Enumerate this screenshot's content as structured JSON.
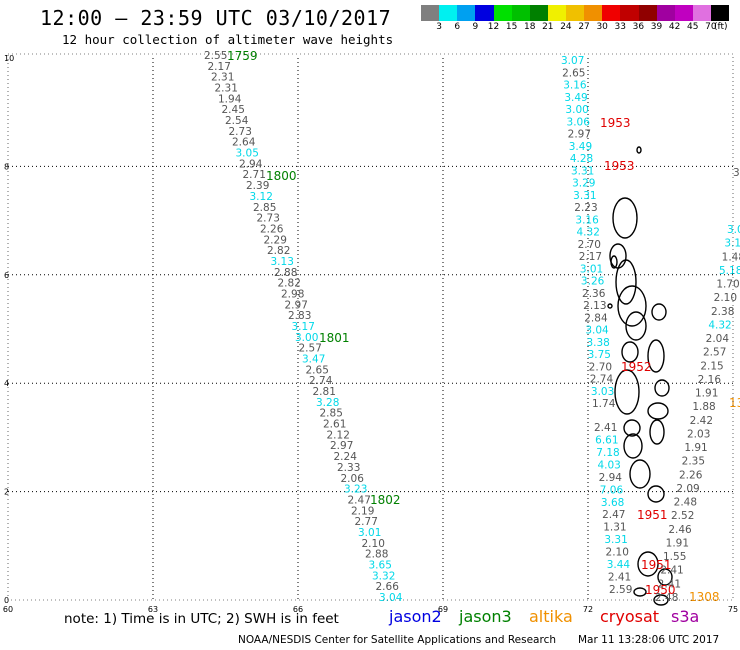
{
  "title": "12:00 – 23:59 UTC 03/10/2017",
  "subtitle": "12 hour collection of altimeter wave heights",
  "colorbar": {
    "colors": [
      "#7f7f7f",
      "#00f0f0",
      "#00a0f0",
      "#0000e0",
      "#00e000",
      "#00c000",
      "#008000",
      "#f0f000",
      "#f0c000",
      "#f09000",
      "#f00000",
      "#c00000",
      "#900000",
      "#a000a0",
      "#c000c0",
      "#e070e0",
      "#000000"
    ],
    "labels": [
      "3",
      "6",
      "9",
      "12",
      "15",
      "18",
      "21",
      "24",
      "27",
      "30",
      "33",
      "36",
      "39",
      "42",
      "45",
      "70"
    ],
    "unit": "(ft)"
  },
  "axes": {
    "y_ticks": [
      "0",
      "2",
      "4",
      "6",
      "8",
      "10"
    ],
    "x_ticks": [
      "60",
      "63",
      "66",
      "69",
      "72",
      "75"
    ]
  },
  "chart_data": {
    "type": "map",
    "lon_range": [
      60,
      75
    ],
    "lat_range": [
      0,
      10
    ],
    "tracks": [
      {
        "satellite": "jason3",
        "time_label": "1759",
        "values": [
          "2.55",
          "2.17",
          "2.31",
          "2.31",
          "1.94",
          "2.45",
          "2.54",
          "2.73",
          "2.64",
          "3.05",
          "2.94",
          "2.71",
          "2.39",
          "3.12",
          "2.85",
          "2.73",
          "2.26",
          "2.29",
          "2.82",
          "3.13",
          "2.88",
          "2.82",
          "2.98",
          "2.97",
          "2.83",
          "3.17",
          "3.00",
          "2.57",
          "3.47",
          "2.65",
          "2.74",
          "2.81",
          "3.28",
          "2.85",
          "2.61",
          "2.12",
          "2.97",
          "2.24",
          "2.33",
          "2.06",
          "3.23",
          "2.47",
          "2.19",
          "2.77",
          "3.01",
          "2.10",
          "2.88",
          "3.65",
          "3.32",
          "2.66",
          "3.04"
        ],
        "time_labels_extra": [
          "1800",
          "1801",
          "1802"
        ]
      },
      {
        "satellite": "cryosat",
        "time_label": "1953",
        "values": [
          "3.07",
          "2.65",
          "3.16",
          "3.49",
          "3.00",
          "3.06",
          "2.97",
          "3.49",
          "4.28",
          "3.31",
          "3.29",
          "3.31",
          "2.23",
          "3.16",
          "4.32",
          "2.70",
          "2.17",
          "3.01",
          "3.26",
          "2.36",
          "2.13",
          "2.84",
          "3.04",
          "3.38",
          "3.75",
          "2.70",
          "2.74",
          "3.03",
          "1.74"
        ],
        "time_labels_extra": [
          "1953",
          "1952"
        ]
      },
      {
        "satellite": "cryosat",
        "time_label": "1951",
        "values": [
          "2.41",
          "6.61",
          "7.18",
          "4.03",
          "2.94",
          "7.06",
          "3.68",
          "2.47",
          "1.31",
          "3.31",
          "2.10",
          "3.44",
          "2.41",
          "2.59"
        ],
        "time_labels_extra": [
          "1950",
          "1951"
        ]
      },
      {
        "satellite": "jason2",
        "values": [
          "3.0",
          "3.1",
          "1.48",
          "5.18",
          "1.70",
          "2.10",
          "2.38",
          "4.32",
          "2.04",
          "2.57",
          "2.15",
          "2.16",
          "1.91",
          "1.88",
          "2.42",
          "2.03",
          "1.91",
          "2.35",
          "2.26",
          "2.09",
          "2.48",
          "2.52",
          "2.46",
          "1.91",
          "1.55",
          "2.41",
          "2.41",
          "2.48"
        ]
      },
      {
        "satellite": "altika",
        "time_label": "1308",
        "values": []
      }
    ],
    "cut_off_labels": [
      "13",
      "3."
    ]
  },
  "footer": {
    "note": "note: 1) Time is in UTC; 2) SWH is in feet",
    "satellites": [
      {
        "name": "jason2",
        "color": "#0000e0"
      },
      {
        "name": "jason3",
        "color": "#008000"
      },
      {
        "name": "altika",
        "color": "#f09000"
      },
      {
        "name": "cryosat",
        "color": "#e00000"
      },
      {
        "name": "s3a",
        "color": "#a000a0"
      }
    ],
    "credit": "NOAA/NESDIS Center for Satellite Applications and Research",
    "timestamp": "Mar 11 13:28:06 UTC 2017"
  }
}
